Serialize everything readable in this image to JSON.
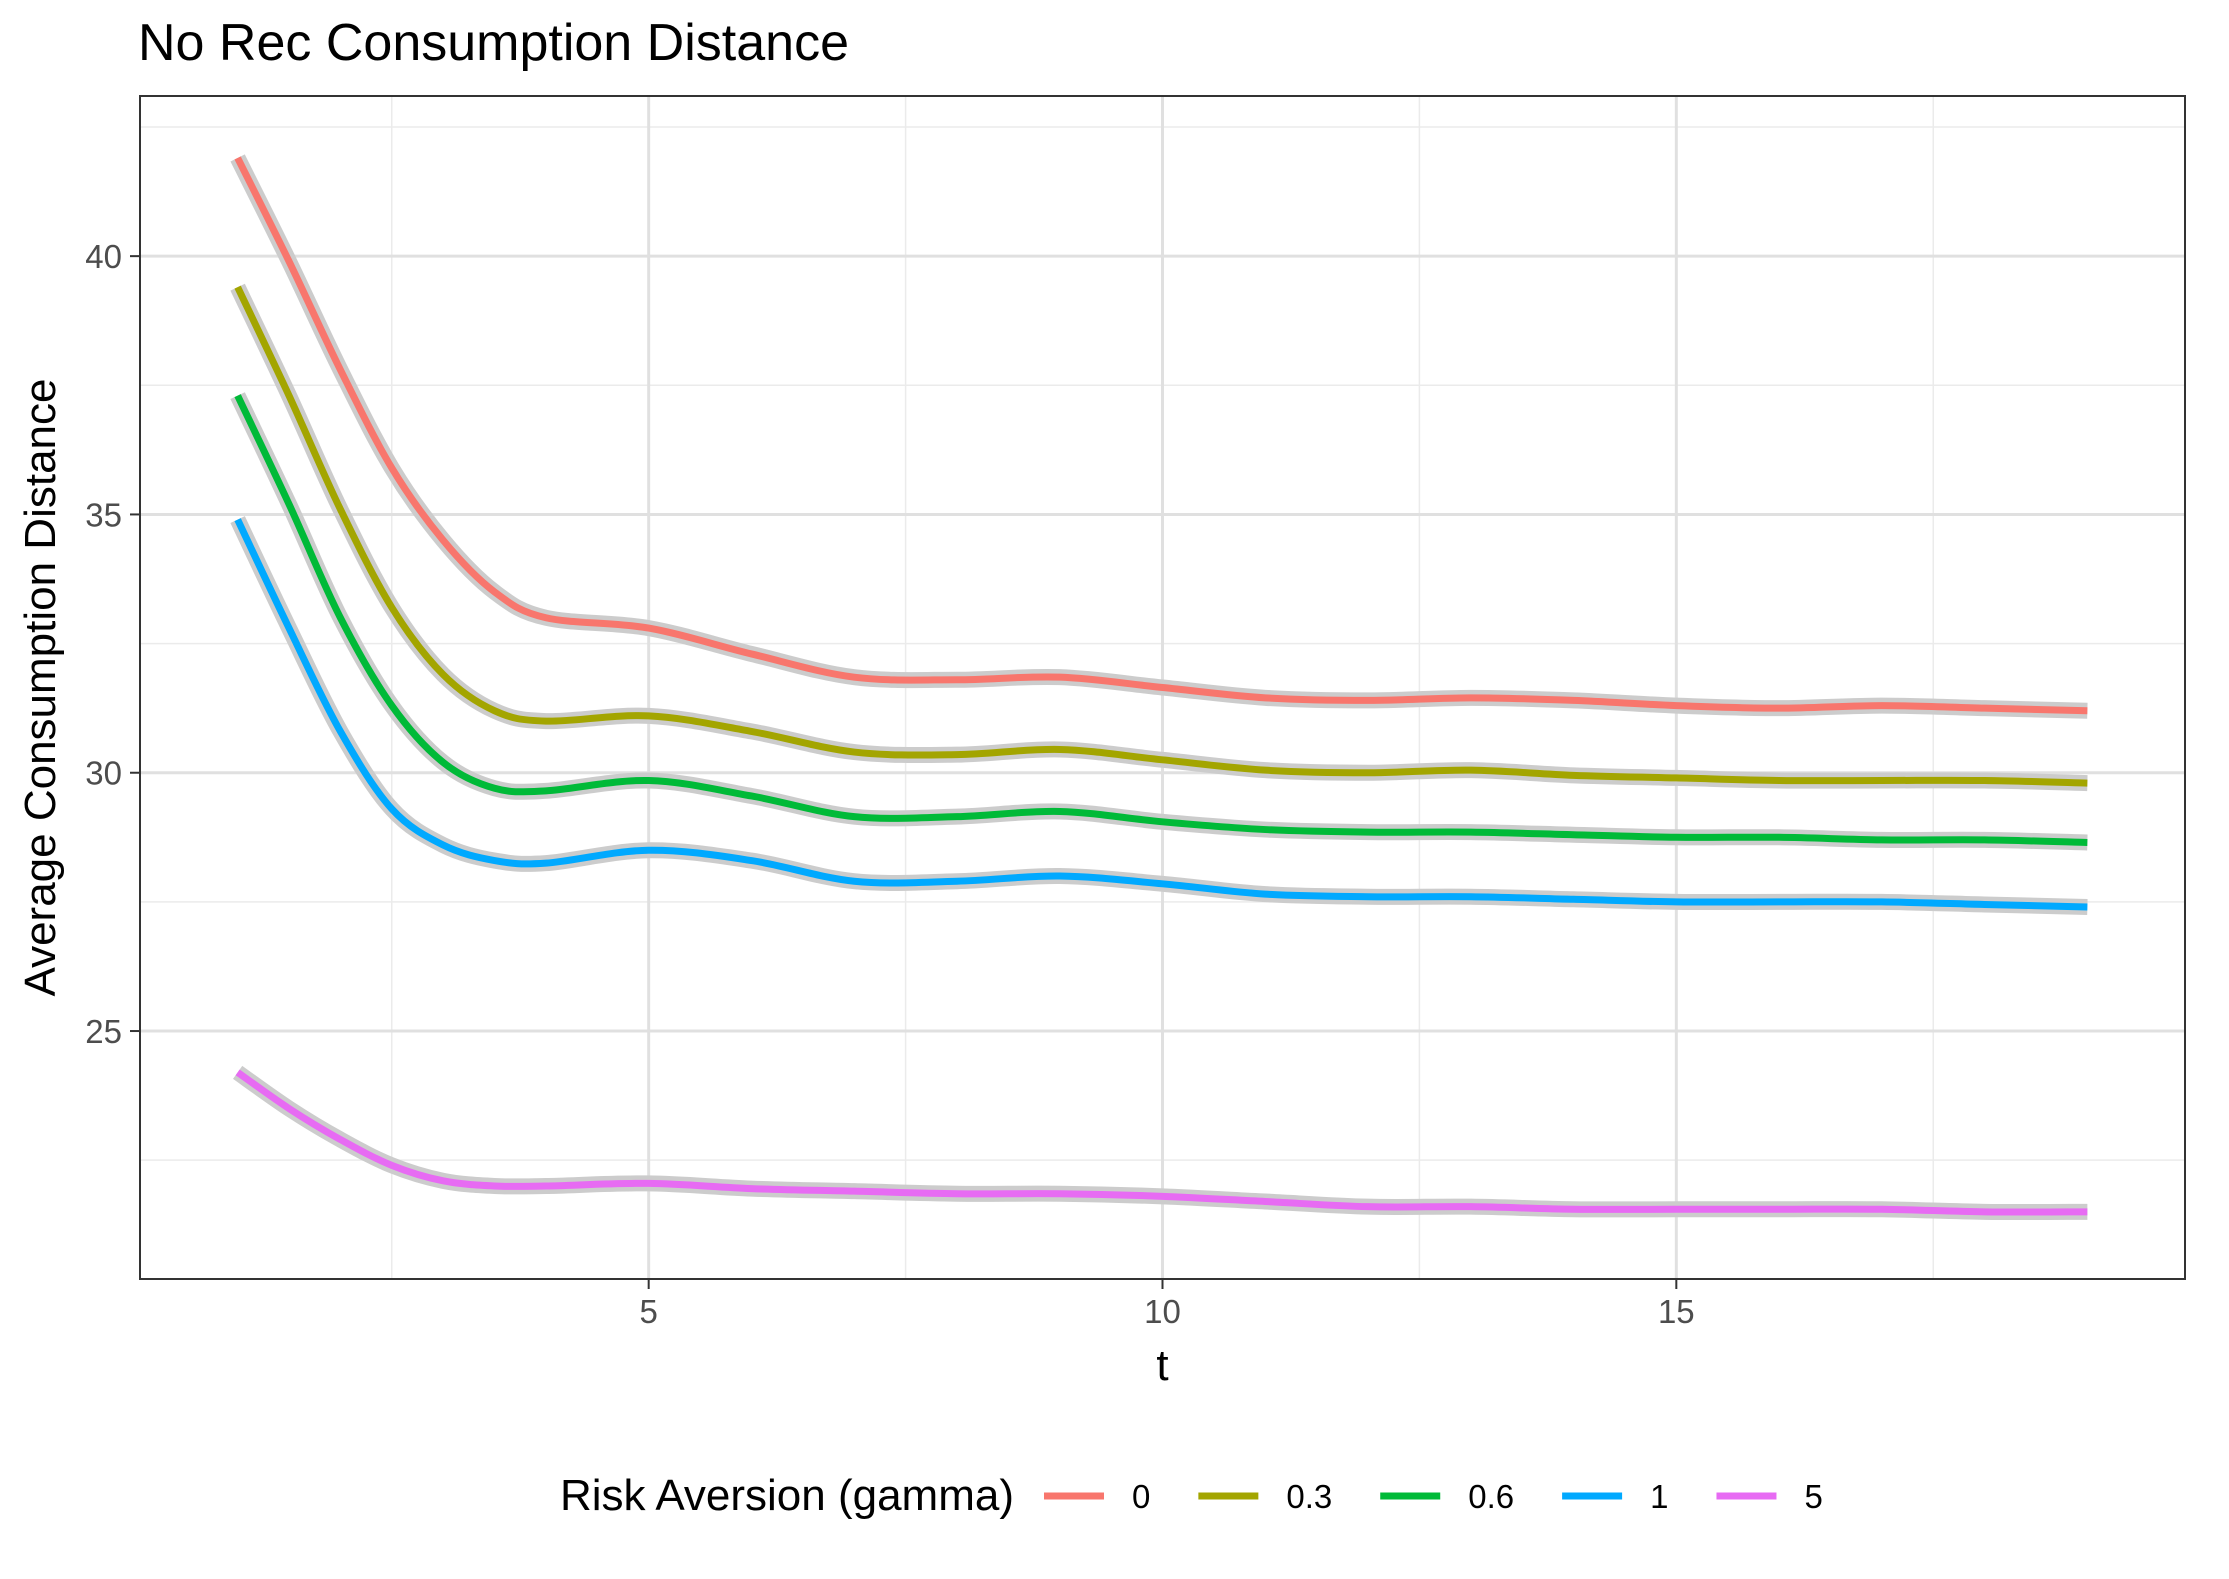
{
  "chart_data": {
    "type": "line",
    "title": "No Rec Consumption Distance",
    "xlabel": "t",
    "ylabel": "Average Consumption Distance",
    "xlim": [
      0.05,
      19.95
    ],
    "ylim": [
      20.2,
      43.1
    ],
    "x_ticks": [
      5,
      10,
      15
    ],
    "y_ticks": [
      25,
      30,
      35,
      40
    ],
    "x_tick_labels": [
      "5",
      "10",
      "15"
    ],
    "y_tick_labels": [
      "25",
      "30",
      "35",
      "40"
    ],
    "grid": true,
    "confidence_band": true,
    "legend": {
      "title": "Risk Aversion (gamma)",
      "position": "bottom"
    },
    "x": [
      1,
      1.5,
      2,
      2.5,
      3,
      3.5,
      4,
      5,
      6,
      7,
      8,
      9,
      10,
      11,
      12,
      13,
      14,
      15,
      16,
      17,
      18,
      19
    ],
    "series": [
      {
        "name": "0",
        "color": "#F8766D",
        "values": [
          41.9,
          39.9,
          37.8,
          35.9,
          34.5,
          33.5,
          33.0,
          32.8,
          32.3,
          31.85,
          31.8,
          31.85,
          31.65,
          31.45,
          31.4,
          31.45,
          31.4,
          31.3,
          31.25,
          31.3,
          31.25,
          31.2
        ]
      },
      {
        "name": "0.3",
        "color": "#A3A500",
        "values": [
          39.4,
          37.3,
          35.1,
          33.2,
          31.9,
          31.2,
          31.0,
          31.1,
          30.8,
          30.4,
          30.35,
          30.45,
          30.25,
          30.05,
          30.0,
          30.05,
          29.95,
          29.9,
          29.85,
          29.85,
          29.85,
          29.8
        ]
      },
      {
        "name": "0.6",
        "color": "#00BA38",
        "values": [
          37.3,
          35.2,
          33.0,
          31.3,
          30.2,
          29.7,
          29.65,
          29.85,
          29.55,
          29.15,
          29.15,
          29.25,
          29.05,
          28.9,
          28.85,
          28.85,
          28.8,
          28.75,
          28.75,
          28.7,
          28.7,
          28.65
        ]
      },
      {
        "name": "1",
        "color": "#00A9FF",
        "values": [
          34.9,
          32.8,
          30.8,
          29.3,
          28.6,
          28.3,
          28.25,
          28.5,
          28.3,
          27.9,
          27.9,
          28.0,
          27.85,
          27.65,
          27.6,
          27.6,
          27.55,
          27.5,
          27.5,
          27.5,
          27.45,
          27.4
        ]
      },
      {
        "name": "5",
        "color": "#E76BF3",
        "values": [
          24.2,
          23.5,
          22.9,
          22.4,
          22.1,
          22.0,
          22.0,
          22.05,
          21.95,
          21.9,
          21.85,
          21.85,
          21.8,
          21.7,
          21.6,
          21.6,
          21.55,
          21.55,
          21.55,
          21.55,
          21.5,
          21.5
        ]
      }
    ]
  }
}
